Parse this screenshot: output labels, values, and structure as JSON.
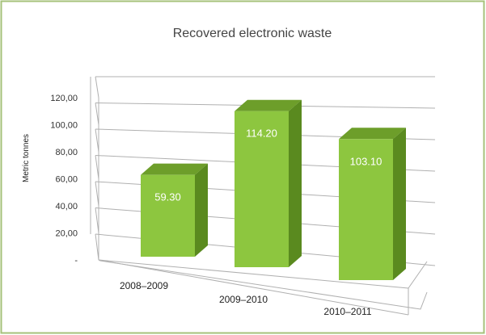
{
  "chart_data": {
    "type": "bar",
    "title": "Recovered electronic waste",
    "ylabel": "Metric tonnes",
    "xlabel": "",
    "categories": [
      "2008–2009",
      "2009–2010",
      "2010–2011"
    ],
    "values": [
      59.3,
      114.2,
      103.1
    ],
    "data_labels": [
      "59.30",
      "114.20",
      "103.10"
    ],
    "ylim": [
      0,
      120
    ],
    "yticks": [
      0,
      20,
      40,
      60,
      80,
      100,
      120
    ],
    "ytick_labels": [
      "-",
      "20,00",
      "40,00",
      "60,00",
      "80,00",
      "100,00",
      "120,00"
    ],
    "grid": true,
    "style": "3d-column",
    "colors": {
      "bar_front": "#8dc63f",
      "bar_front_dark": "#78b02c",
      "bar_side": "#5a8a1f",
      "bar_top": "#6d9e2a",
      "border": "#a5c27a",
      "grid": "#b0b0b0"
    }
  }
}
